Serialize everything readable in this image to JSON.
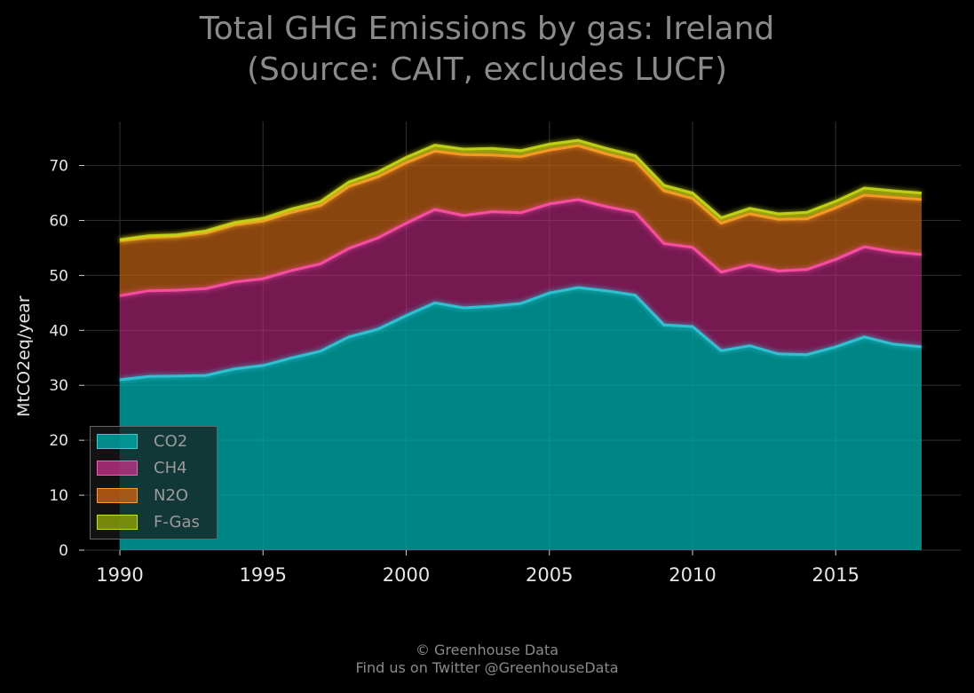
{
  "title_line1": "Total GHG Emissions by gas: Ireland",
  "title_line2": "(Source: CAIT, excludes LUCF)",
  "footer_line1": "© Greenhouse Data",
  "footer_line2": "Find us on Twitter @GreenhouseData",
  "chart_data": {
    "type": "area",
    "stacked": true,
    "ylabel": "MtCO2eq/year",
    "xlabel": "",
    "xlim": [
      1990,
      2018
    ],
    "ylim": [
      0,
      78
    ],
    "grid": true,
    "legend_position": "lower-left",
    "x_ticks": [
      1990,
      1995,
      2000,
      2005,
      2010,
      2015
    ],
    "y_ticks": [
      0,
      10,
      20,
      30,
      40,
      50,
      60,
      70
    ],
    "x": [
      1990,
      1991,
      1992,
      1993,
      1994,
      1995,
      1996,
      1997,
      1998,
      1999,
      2000,
      2001,
      2002,
      2003,
      2004,
      2005,
      2006,
      2007,
      2008,
      2009,
      2010,
      2011,
      2012,
      2013,
      2014,
      2015,
      2016,
      2017,
      2018
    ],
    "series": [
      {
        "name": "CO2",
        "color": "#00b3b3",
        "values": [
          31.0,
          31.6,
          31.7,
          31.8,
          33.0,
          33.6,
          35.0,
          36.2,
          38.8,
          40.2,
          42.7,
          45.0,
          44.1,
          44.4,
          44.9,
          46.8,
          47.8,
          47.2,
          46.4,
          41.0,
          40.7,
          36.3,
          37.2,
          35.7,
          35.6,
          37.0,
          38.8,
          37.5,
          37.0
        ]
      },
      {
        "name": "CH4",
        "color": "#e0489a",
        "values": [
          15.3,
          15.6,
          15.6,
          15.8,
          15.8,
          15.8,
          15.9,
          15.9,
          16.1,
          16.6,
          16.8,
          17.0,
          16.8,
          17.2,
          16.5,
          16.2,
          16.0,
          15.3,
          15.1,
          14.8,
          14.4,
          14.3,
          14.7,
          15.1,
          15.5,
          15.9,
          16.4,
          16.8,
          16.8
        ]
      },
      {
        "name": "N2O",
        "color": "#e07818",
        "values": [
          10.0,
          9.7,
          9.8,
          10.1,
          10.4,
          10.5,
          10.6,
          10.6,
          11.3,
          11.1,
          11.0,
          10.6,
          11.1,
          10.3,
          10.2,
          9.8,
          9.8,
          9.6,
          9.3,
          9.6,
          8.9,
          8.9,
          9.3,
          9.4,
          9.2,
          9.4,
          9.4,
          9.9,
          10.0
        ]
      },
      {
        "name": "F-Gas",
        "color": "#9ab010",
        "values": [
          0.2,
          0.3,
          0.3,
          0.4,
          0.4,
          0.5,
          0.6,
          0.7,
          0.8,
          0.9,
          1.0,
          1.1,
          1.0,
          1.2,
          1.1,
          1.1,
          1.0,
          1.0,
          1.0,
          1.0,
          1.0,
          1.0,
          1.0,
          1.0,
          1.2,
          1.2,
          1.3,
          1.2,
          1.2
        ]
      }
    ]
  }
}
